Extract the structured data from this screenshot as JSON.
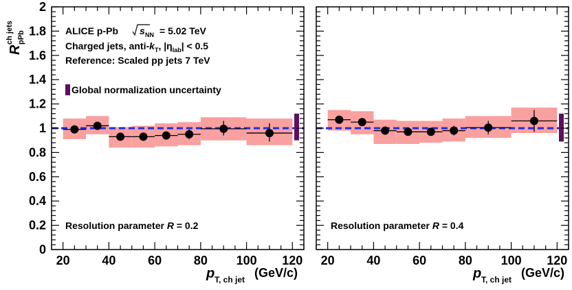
{
  "colors": {
    "frame": "#000000",
    "band": "#f9a0a0",
    "reference_line": "#1f2ee0",
    "norm_box": "#5e0f5e",
    "marker": "#000000"
  },
  "chart_data": [
    {
      "type": "scatter",
      "panel": "left",
      "ylabel_main": "R",
      "ylabel_sup": "ch jets",
      "ylabel_sub": "pPb",
      "xlabel_main": "p",
      "xlabel_sub": "T, ch jet",
      "xlabel_unit": "(GeV/c)",
      "xlim": [
        15,
        125
      ],
      "ylim": [
        0,
        2
      ],
      "xticks": [
        20,
        40,
        60,
        80,
        100,
        120
      ],
      "yticks": [
        0,
        0.2,
        0.4,
        0.6,
        0.8,
        1,
        1.2,
        1.4,
        1.6,
        1.8,
        2
      ],
      "ytick_labels": [
        "0",
        "0.2",
        "0.4",
        "0.6",
        "0.8",
        "1",
        "1.2",
        "1.4",
        "1.6",
        "1.8",
        "2"
      ],
      "grid": false,
      "reference_line": 1,
      "annotations": {
        "line1_prefix": "ALICE p-Pb",
        "line1_energy": "= 5.02 TeV",
        "line1_sqrt": "s",
        "line1_nn": "NN",
        "line2_prefix": "Charged jets, anti-",
        "line2_k": "k",
        "line2_ksub": "T",
        "line2_eta": ", |η",
        "line2_lab": "lab",
        "line2_suffix": "| < 0.5",
        "line3": "Reference: Scaled pp jets 7 TeV",
        "legend_norm": "Global normalization uncertainty",
        "resolution_prefix": "Resolution parameter",
        "resolution_r": "R",
        "resolution_value": "= 0.2"
      },
      "normalization_uncertainty": [
        0.9,
        1.12
      ],
      "points": [
        {
          "x": 25,
          "y": 0.99,
          "xlo": 20,
          "xhi": 30,
          "ylo": 0.98,
          "yhi": 1.0,
          "syslo": 0.91,
          "syshi": 1.08
        },
        {
          "x": 35,
          "y": 1.02,
          "xlo": 30,
          "xhi": 40,
          "ylo": 1.01,
          "yhi": 1.03,
          "syslo": 0.95,
          "syshi": 1.1
        },
        {
          "x": 45,
          "y": 0.93,
          "xlo": 40,
          "xhi": 50,
          "ylo": 0.92,
          "yhi": 0.94,
          "syslo": 0.84,
          "syshi": 1.01
        },
        {
          "x": 55,
          "y": 0.93,
          "xlo": 50,
          "xhi": 60,
          "ylo": 0.92,
          "yhi": 0.94,
          "syslo": 0.84,
          "syshi": 1.02
        },
        {
          "x": 65,
          "y": 0.94,
          "xlo": 60,
          "xhi": 70,
          "ylo": 0.92,
          "yhi": 0.97,
          "syslo": 0.85,
          "syshi": 1.04
        },
        {
          "x": 75,
          "y": 0.95,
          "xlo": 70,
          "xhi": 80,
          "ylo": 0.91,
          "yhi": 0.99,
          "syslo": 0.86,
          "syshi": 1.05
        },
        {
          "x": 90,
          "y": 0.995,
          "xlo": 80,
          "xhi": 100,
          "ylo": 0.94,
          "yhi": 1.06,
          "syslo": 0.9,
          "syshi": 1.09
        },
        {
          "x": 110,
          "y": 0.96,
          "xlo": 100,
          "xhi": 120,
          "ylo": 0.89,
          "yhi": 1.04,
          "syslo": 0.86,
          "syshi": 1.08
        }
      ]
    },
    {
      "type": "scatter",
      "panel": "right",
      "xlabel_main": "p",
      "xlabel_sub": "T, ch jet",
      "xlabel_unit": "(GeV/c)",
      "xlim": [
        15,
        125
      ],
      "ylim": [
        0,
        2
      ],
      "xticks": [
        20,
        40,
        60,
        80,
        100,
        120
      ],
      "grid": false,
      "reference_line": 1,
      "annotations": {
        "resolution_prefix": "Resolution parameter",
        "resolution_r": "R",
        "resolution_value": "= 0.4"
      },
      "normalization_uncertainty": [
        0.89,
        1.12
      ],
      "points": [
        {
          "x": 25,
          "y": 1.07,
          "xlo": 20,
          "xhi": 30,
          "ylo": 1.06,
          "yhi": 1.08,
          "syslo": 0.98,
          "syshi": 1.15
        },
        {
          "x": 35,
          "y": 1.05,
          "xlo": 30,
          "xhi": 40,
          "ylo": 1.04,
          "yhi": 1.06,
          "syslo": 0.95,
          "syshi": 1.14
        },
        {
          "x": 45,
          "y": 0.98,
          "xlo": 40,
          "xhi": 50,
          "ylo": 0.97,
          "yhi": 0.99,
          "syslo": 0.87,
          "syshi": 1.07
        },
        {
          "x": 55,
          "y": 0.97,
          "xlo": 50,
          "xhi": 60,
          "ylo": 0.96,
          "yhi": 0.98,
          "syslo": 0.87,
          "syshi": 1.06
        },
        {
          "x": 65,
          "y": 0.97,
          "xlo": 60,
          "xhi": 70,
          "ylo": 0.95,
          "yhi": 0.99,
          "syslo": 0.88,
          "syshi": 1.06
        },
        {
          "x": 75,
          "y": 0.98,
          "xlo": 70,
          "xhi": 80,
          "ylo": 0.94,
          "yhi": 1.02,
          "syslo": 0.89,
          "syshi": 1.08
        },
        {
          "x": 90,
          "y": 1.005,
          "xlo": 80,
          "xhi": 100,
          "ylo": 0.95,
          "yhi": 1.06,
          "syslo": 0.92,
          "syshi": 1.1
        },
        {
          "x": 110,
          "y": 1.06,
          "xlo": 100,
          "xhi": 120,
          "ylo": 0.97,
          "yhi": 1.15,
          "syslo": 0.96,
          "syshi": 1.17
        }
      ]
    }
  ]
}
